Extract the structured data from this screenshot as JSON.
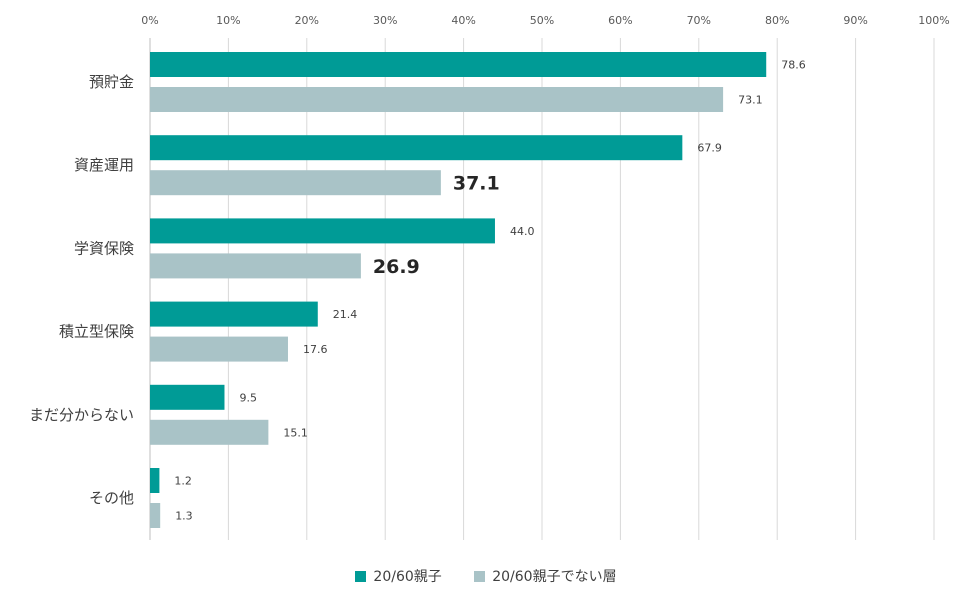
{
  "chart_data": {
    "type": "bar",
    "orientation": "horizontal",
    "categories": [
      "預貯金",
      "資産運用",
      "学資保険",
      "積立型保険",
      "まだ分からない",
      "その他"
    ],
    "series": [
      {
        "name": "20/60親子",
        "color": "#009b96",
        "values": [
          78.6,
          67.9,
          44.0,
          21.4,
          9.5,
          1.2
        ]
      },
      {
        "name": "20/60親子でない層",
        "color": "#a9c3c7",
        "values": [
          73.1,
          37.1,
          26.9,
          17.6,
          15.1,
          1.3
        ]
      }
    ],
    "data_labels": [
      [
        "78.6",
        "67.9",
        "44.0",
        "21.4",
        "9.5",
        "1.2"
      ],
      [
        "73.1",
        "37.1",
        "26.9",
        "17.6",
        "15.1",
        "1.3"
      ]
    ],
    "emphasized_labels": [
      [
        1,
        1
      ],
      [
        1,
        2
      ]
    ],
    "xlim": [
      0,
      100
    ],
    "xticks": [
      "0%",
      "10%",
      "20%",
      "30%",
      "40%",
      "50%",
      "60%",
      "70%",
      "80%",
      "90%",
      "100%"
    ],
    "x_axis_position": "top",
    "grid": true,
    "legend_position": "bottom-center"
  }
}
